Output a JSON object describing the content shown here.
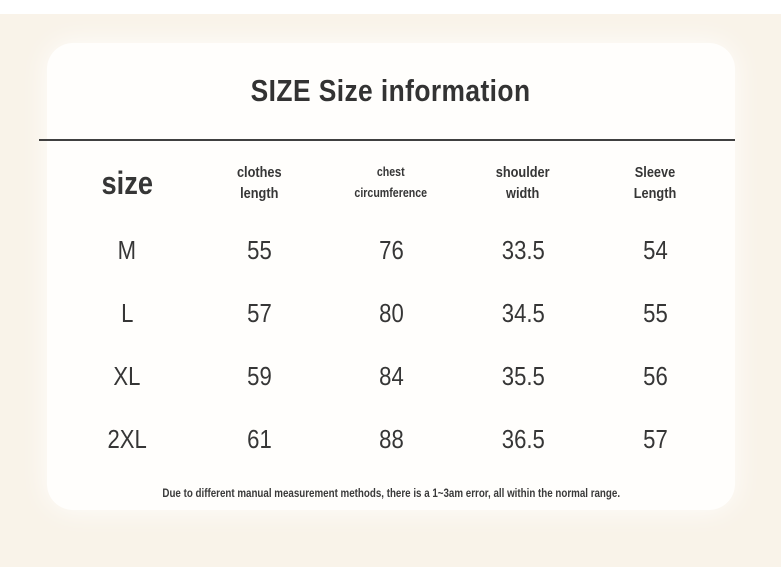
{
  "theme": {
    "background": "#ffffff",
    "backdrop": "#f9f3e9",
    "card": "#fffefc",
    "text": "#363636",
    "divider": "#404040"
  },
  "title": "SIZE Size information",
  "table": {
    "header": {
      "size": "size",
      "cols": [
        {
          "l1": "clothes",
          "l2": "length"
        },
        {
          "l1": "chest",
          "l2": "circumference"
        },
        {
          "l1": "shoulder",
          "l2": "width"
        },
        {
          "l1": "Sleeve",
          "l2": "Length"
        }
      ]
    },
    "rows": [
      [
        "M",
        "55",
        "76",
        "33.5",
        "54"
      ],
      [
        "L",
        "57",
        "80",
        "34.5",
        "55"
      ],
      [
        "XL",
        "59",
        "84",
        "35.5",
        "56"
      ],
      [
        "2XL",
        "61",
        "88",
        "36.5",
        "57"
      ]
    ]
  },
  "note": "Due to different manual measurement methods, there is a 1~3am error, all within the normal range."
}
